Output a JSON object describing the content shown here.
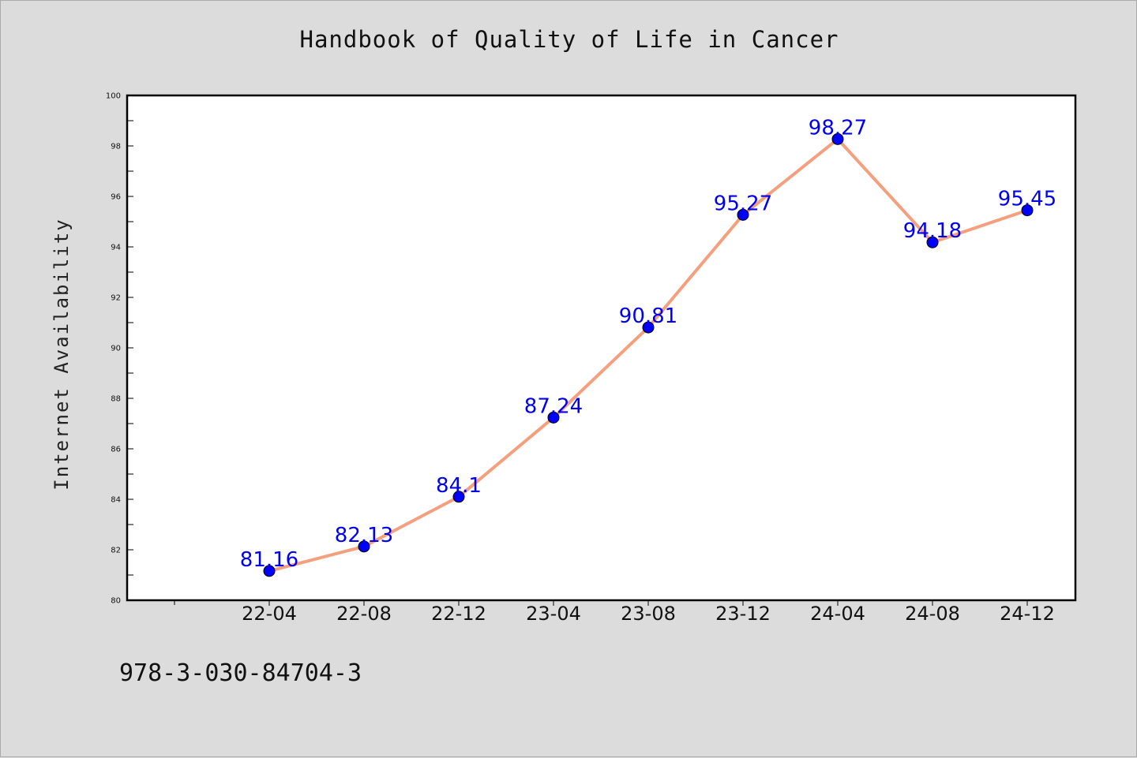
{
  "chart_data": {
    "type": "line",
    "title": "Handbook of Quality of Life in Cancer",
    "ylabel": "Internet Availability",
    "xlabel": "",
    "categories": [
      "22-04",
      "22-08",
      "22-12",
      "23-04",
      "23-08",
      "23-12",
      "24-04",
      "24-08",
      "24-12"
    ],
    "series": [
      {
        "values": [
          81.16,
          82.13,
          84.1,
          87.24,
          90.81,
          95.27,
          98.27,
          94.18,
          95.45
        ],
        "labels": [
          "81.16",
          "82.13",
          "84.1",
          "87.24",
          "90.81",
          "95.27",
          "98.27",
          "94.18",
          "95.45"
        ],
        "line_color": "#f4a07e",
        "marker_color": "#0000ff"
      }
    ],
    "ylim": [
      80,
      100
    ],
    "yticks": [
      80,
      82,
      84,
      86,
      88,
      90,
      92,
      94,
      96,
      98,
      100
    ],
    "grid": false
  },
  "footer": {
    "isbn": "978-3-030-84704-3"
  }
}
